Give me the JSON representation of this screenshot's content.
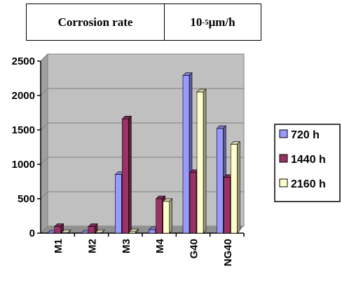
{
  "header": {
    "label": "Corrosion rate",
    "unit_base": "10",
    "unit_exp": "-5",
    "unit_rest": " μm/h"
  },
  "chart_data": {
    "type": "bar",
    "categories": [
      "M1",
      "M2",
      "M3",
      "M4",
      "G40",
      "NG40"
    ],
    "series": [
      {
        "name": "720 h",
        "color": "#9999ff",
        "values": [
          0,
          0,
          850,
          50,
          2290,
          1520
        ]
      },
      {
        "name": "1440 h",
        "color": "#993366",
        "values": [
          95,
          95,
          1660,
          500,
          880,
          810
        ]
      },
      {
        "name": "2160 h",
        "color": "#ffffcc",
        "values": [
          5,
          5,
          20,
          460,
          2050,
          1290
        ]
      }
    ],
    "ylim": [
      0,
      2500
    ],
    "yticks": [
      "0",
      "500",
      "1000",
      "1500",
      "2000",
      "2500"
    ],
    "grid": true,
    "legend": "right",
    "title": "",
    "xlabel": "",
    "ylabel": ""
  }
}
